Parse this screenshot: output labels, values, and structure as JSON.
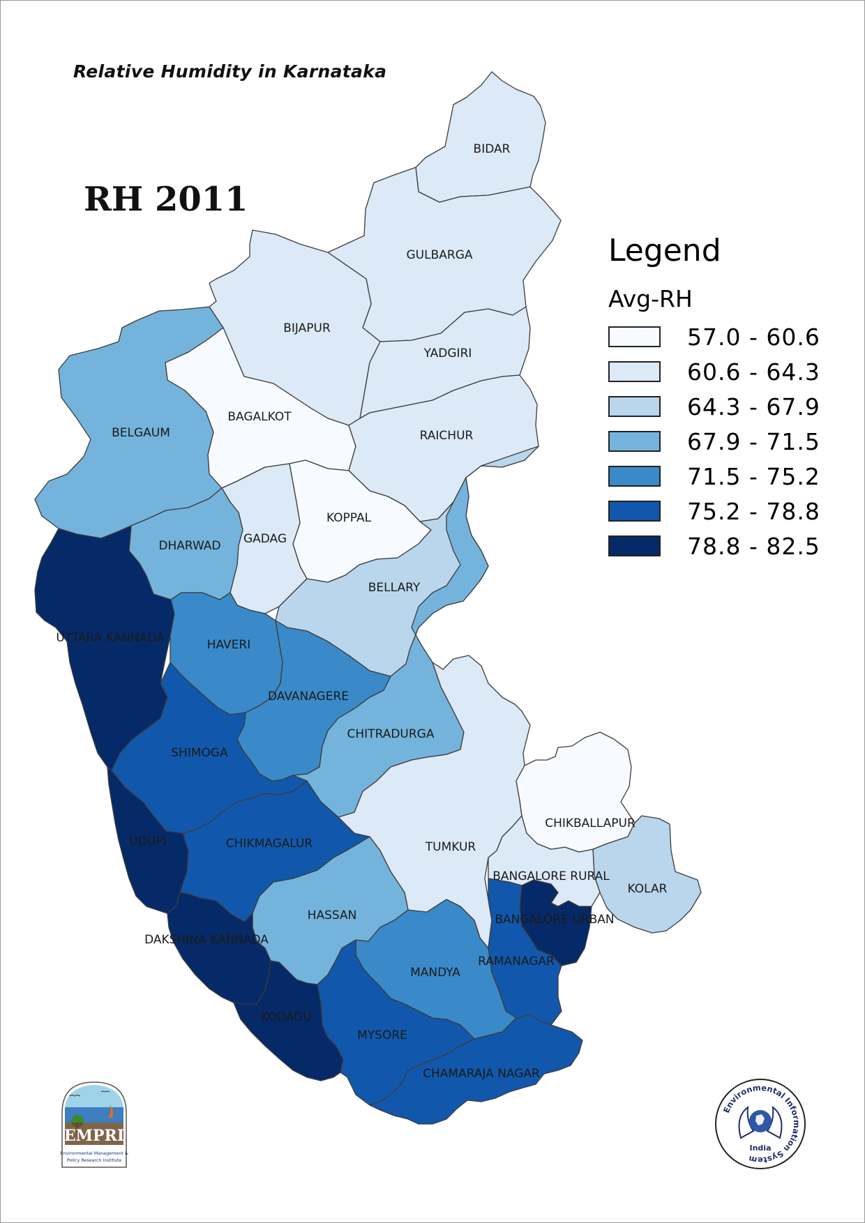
{
  "header": {
    "title": "Relative Humidity in Karnataka",
    "year_label": "RH 2011"
  },
  "legend": {
    "title": "Legend",
    "subtitle": "Avg-RH",
    "classes": [
      {
        "label": "57.0 - 60.6",
        "color": "#f7fbff"
      },
      {
        "label": "60.6 - 64.3",
        "color": "#dce9f6"
      },
      {
        "label": "64.3 - 67.9",
        "color": "#b9d6ec"
      },
      {
        "label": "67.9 - 71.5",
        "color": "#74b4dc"
      },
      {
        "label": "71.5 - 75.2",
        "color": "#3a8ac9"
      },
      {
        "label": "75.2 - 78.8",
        "color": "#1158ac"
      },
      {
        "label": "78.8 - 82.5",
        "color": "#062a68"
      }
    ]
  },
  "districts": [
    {
      "name": "BIDAR",
      "class": 1
    },
    {
      "name": "GULBARGA",
      "class": 1
    },
    {
      "name": "BIJAPUR",
      "class": 1
    },
    {
      "name": "YADGIRI",
      "class": 1
    },
    {
      "name": "BAGALKOT",
      "class": 0
    },
    {
      "name": "RAICHUR",
      "class": 1
    },
    {
      "name": "BELGAUM",
      "class": 3
    },
    {
      "name": "KOPPAL",
      "class": 0
    },
    {
      "name": "GADAG",
      "class": 1
    },
    {
      "name": "DHARWAD",
      "class": 3
    },
    {
      "name": "BELLARY",
      "class": 2
    },
    {
      "name": "UTTARA KANNADA",
      "class": 6
    },
    {
      "name": "HAVERI",
      "class": 4
    },
    {
      "name": "DAVANAGERE",
      "class": 4
    },
    {
      "name": "CHITRADURGA",
      "class": 3
    },
    {
      "name": "SHIMOGA",
      "class": 5
    },
    {
      "name": "UDUPI",
      "class": 6
    },
    {
      "name": "CHIKMAGALUR",
      "class": 5
    },
    {
      "name": "TUMKUR",
      "class": 1
    },
    {
      "name": "CHIKBALLAPUR",
      "class": 0
    },
    {
      "name": "KOLAR",
      "class": 2
    },
    {
      "name": "BANGALORE RURAL",
      "class": 1
    },
    {
      "name": "BANGALORE URBAN",
      "class": 6
    },
    {
      "name": "HASSAN",
      "class": 3
    },
    {
      "name": "DAKSHINA KANNADA",
      "class": 6
    },
    {
      "name": "RAMANAGAR",
      "class": 5
    },
    {
      "name": "MANDYA",
      "class": 4
    },
    {
      "name": "KODAGU",
      "class": 6
    },
    {
      "name": "MYSORE",
      "class": 5
    },
    {
      "name": "CHAMARAJA NAGAR",
      "class": 5
    }
  ],
  "logos": {
    "empri_text": "EMPRI",
    "empri_caption_1": "Environmental Management &",
    "empri_caption_2": "Policy Research Institute",
    "eis_ring_text": "Environmental Information System",
    "eis_country": "India"
  }
}
